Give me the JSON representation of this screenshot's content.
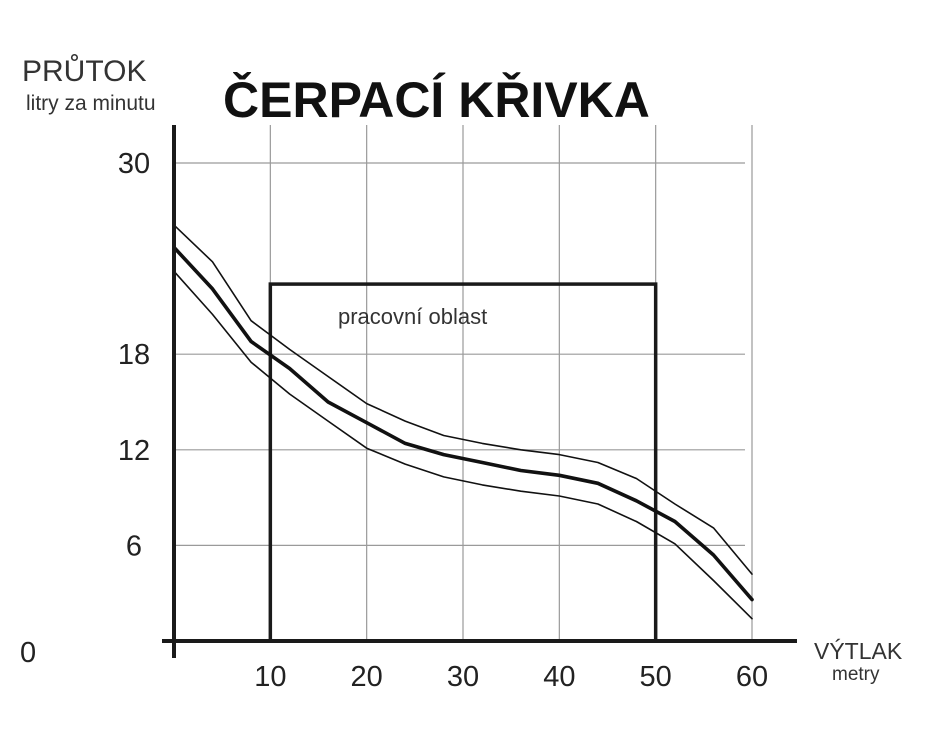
{
  "chart_data": {
    "type": "line",
    "title": "ČERPACÍ KŘIVKA",
    "ylabel": "PRŮTOK",
    "ylabel_sub": "litry za minutu",
    "xlabel": "VÝTLAK",
    "xlabel_sub": "metry",
    "xlim": [
      0,
      60
    ],
    "ylim": [
      0,
      30
    ],
    "x_ticks": [
      10,
      20,
      30,
      40,
      50,
      60
    ],
    "y_ticks": [
      6,
      12,
      18,
      30
    ],
    "origin_label": "0",
    "grid": true,
    "region": {
      "label": "pracovní oblast",
      "x": [
        10,
        50
      ],
      "y": [
        0,
        22.4
      ]
    },
    "series": [
      {
        "role": "upper",
        "values": [
          [
            0,
            26.1
          ],
          [
            4,
            23.8
          ],
          [
            8,
            20.1
          ],
          [
            12,
            18.3
          ],
          [
            16,
            16.6
          ],
          [
            20,
            14.9
          ],
          [
            24,
            13.8
          ],
          [
            28,
            12.9
          ],
          [
            32,
            12.4
          ],
          [
            36,
            12.0
          ],
          [
            40,
            11.7
          ],
          [
            44,
            11.2
          ],
          [
            48,
            10.2
          ],
          [
            52,
            8.6
          ],
          [
            56,
            7.1
          ],
          [
            60,
            4.2
          ]
        ]
      },
      {
        "role": "main",
        "values": [
          [
            0,
            24.7
          ],
          [
            4,
            22.1
          ],
          [
            8,
            18.8
          ],
          [
            12,
            17.1
          ],
          [
            16,
            15.0
          ],
          [
            20,
            13.7
          ],
          [
            24,
            12.4
          ],
          [
            28,
            11.7
          ],
          [
            32,
            11.2
          ],
          [
            36,
            10.7
          ],
          [
            40,
            10.4
          ],
          [
            44,
            9.9
          ],
          [
            48,
            8.8
          ],
          [
            52,
            7.5
          ],
          [
            56,
            5.4
          ],
          [
            60,
            2.6
          ]
        ]
      },
      {
        "role": "lower",
        "values": [
          [
            0,
            23.2
          ],
          [
            4,
            20.5
          ],
          [
            8,
            17.5
          ],
          [
            12,
            15.5
          ],
          [
            16,
            13.8
          ],
          [
            20,
            12.1
          ],
          [
            24,
            11.1
          ],
          [
            28,
            10.3
          ],
          [
            32,
            9.8
          ],
          [
            36,
            9.4
          ],
          [
            40,
            9.1
          ],
          [
            44,
            8.6
          ],
          [
            48,
            7.5
          ],
          [
            52,
            6.1
          ],
          [
            56,
            3.8
          ],
          [
            60,
            1.4
          ]
        ]
      }
    ]
  }
}
